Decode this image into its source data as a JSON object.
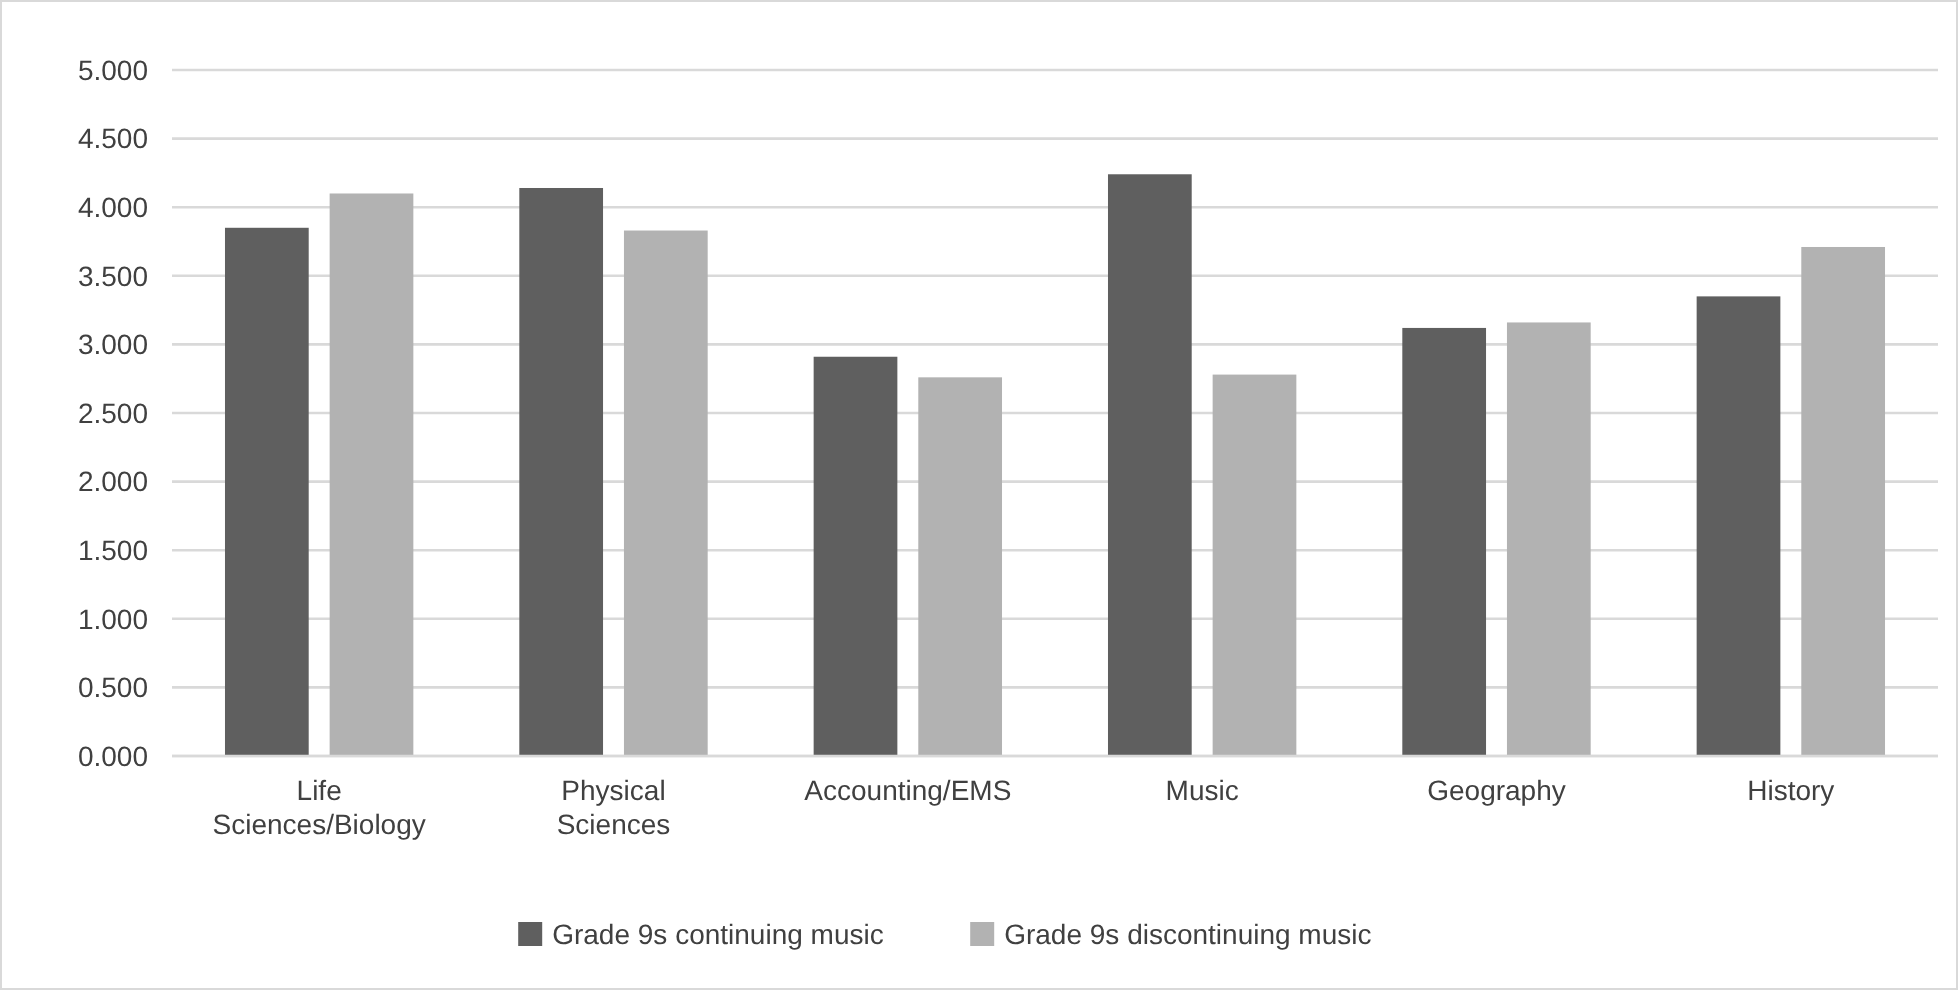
{
  "chart_data": {
    "type": "bar",
    "categories": [
      "Life Sciences/Biology",
      "Physical Sciences",
      "Accounting/EMS",
      "Music",
      "Geography",
      "History"
    ],
    "series": [
      {
        "name": "Grade 9s continuing music",
        "color": "#5f5f5f",
        "values": [
          3.85,
          4.14,
          2.91,
          4.24,
          3.12,
          3.35
        ]
      },
      {
        "name": "Grade 9s discontinuing music",
        "color": "#b2b2b2",
        "values": [
          4.1,
          3.83,
          2.76,
          2.78,
          3.16,
          3.71
        ]
      }
    ],
    "ylim": [
      0,
      5
    ],
    "yticks": [
      {
        "value": 0,
        "label": "0.000"
      },
      {
        "value": 0.5,
        "label": "0.500"
      },
      {
        "value": 1,
        "label": "1.000"
      },
      {
        "value": 1.5,
        "label": "1.500"
      },
      {
        "value": 2,
        "label": "2.000"
      },
      {
        "value": 2.5,
        "label": "2.500"
      },
      {
        "value": 3,
        "label": "3.000"
      },
      {
        "value": 3.5,
        "label": "3.500"
      },
      {
        "value": 4,
        "label": "4.000"
      },
      {
        "value": 4.5,
        "label": "4.500"
      },
      {
        "value": 5,
        "label": "5.000"
      }
    ],
    "grid": "y",
    "legend": "bottom"
  }
}
